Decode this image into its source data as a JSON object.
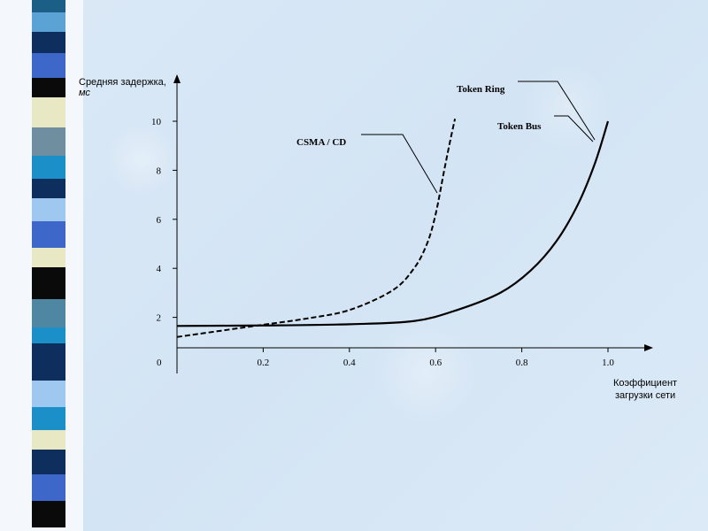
{
  "stripes": [
    {
      "color": "#1c5f86",
      "h": 14
    },
    {
      "color": "#5aa3d4",
      "h": 22
    },
    {
      "color": "#0e2e5e",
      "h": 24
    },
    {
      "color": "#3d68c9",
      "h": 28
    },
    {
      "color": "#0a0a0a",
      "h": 22
    },
    {
      "color": "#e9e8c4",
      "h": 34
    },
    {
      "color": "#6f8fa0",
      "h": 32
    },
    {
      "color": "#1b8fc8",
      "h": 26
    },
    {
      "color": "#0e2e5e",
      "h": 22
    },
    {
      "color": "#9ec8ef",
      "h": 26
    },
    {
      "color": "#3d68c9",
      "h": 30
    },
    {
      "color": "#e9e8c4",
      "h": 22
    },
    {
      "color": "#0a0a0a",
      "h": 36
    },
    {
      "color": "#4f87a3",
      "h": 32
    },
    {
      "color": "#1b8fc8",
      "h": 18
    },
    {
      "color": "#0e2e5e",
      "h": 42
    },
    {
      "color": "#9ec8ef",
      "h": 30
    },
    {
      "color": "#1b8fc8",
      "h": 26
    },
    {
      "color": "#e9e8c4",
      "h": 22
    },
    {
      "color": "#0e2e5e",
      "h": 28
    },
    {
      "color": "#3d68c9",
      "h": 30
    },
    {
      "color": "#0a0a0a",
      "h": 30
    }
  ],
  "chart_data": {
    "type": "line",
    "ylabel_line1": "Средняя задержка,",
    "ylabel_line2": "мс",
    "xlabel_line1": "Коэффициент",
    "xlabel_line2": "загрузки сети",
    "origin_label": "0",
    "xlim": [
      0,
      1.1
    ],
    "ylim": [
      0,
      10.8
    ],
    "x_ticks": [
      {
        "value": 0.2,
        "label": "0.2"
      },
      {
        "value": 0.4,
        "label": "0.4"
      },
      {
        "value": 0.6,
        "label": "0.6"
      },
      {
        "value": 0.8,
        "label": "0.8"
      },
      {
        "value": 1.0,
        "label": "1.0"
      }
    ],
    "y_ticks": [
      {
        "value": 2,
        "label": "2"
      },
      {
        "value": 4,
        "label": "4"
      },
      {
        "value": 6,
        "label": "6"
      },
      {
        "value": 8,
        "label": "8"
      },
      {
        "value": 10,
        "label": "10"
      }
    ],
    "series": [
      {
        "name": "CSMA / CD",
        "dash": true,
        "points": [
          [
            0,
            1.2
          ],
          [
            0.1,
            1.45
          ],
          [
            0.2,
            1.7
          ],
          [
            0.3,
            1.95
          ],
          [
            0.4,
            2.3
          ],
          [
            0.5,
            3.1
          ],
          [
            0.55,
            4.0
          ],
          [
            0.58,
            5.0
          ],
          [
            0.6,
            6.2
          ],
          [
            0.62,
            8.0
          ],
          [
            0.635,
            9.3
          ],
          [
            0.645,
            10.1
          ]
        ]
      },
      {
        "name": "Token Ring",
        "dash": false,
        "points": [
          [
            0,
            1.65
          ],
          [
            0.2,
            1.67
          ],
          [
            0.4,
            1.72
          ],
          [
            0.55,
            1.85
          ],
          [
            0.65,
            2.3
          ],
          [
            0.75,
            3.0
          ],
          [
            0.82,
            3.9
          ],
          [
            0.88,
            5.1
          ],
          [
            0.93,
            6.6
          ],
          [
            0.97,
            8.3
          ],
          [
            1.0,
            10.0
          ]
        ]
      },
      {
        "name": "Token Bus",
        "dash": false,
        "points": []
      }
    ],
    "grid": false
  }
}
